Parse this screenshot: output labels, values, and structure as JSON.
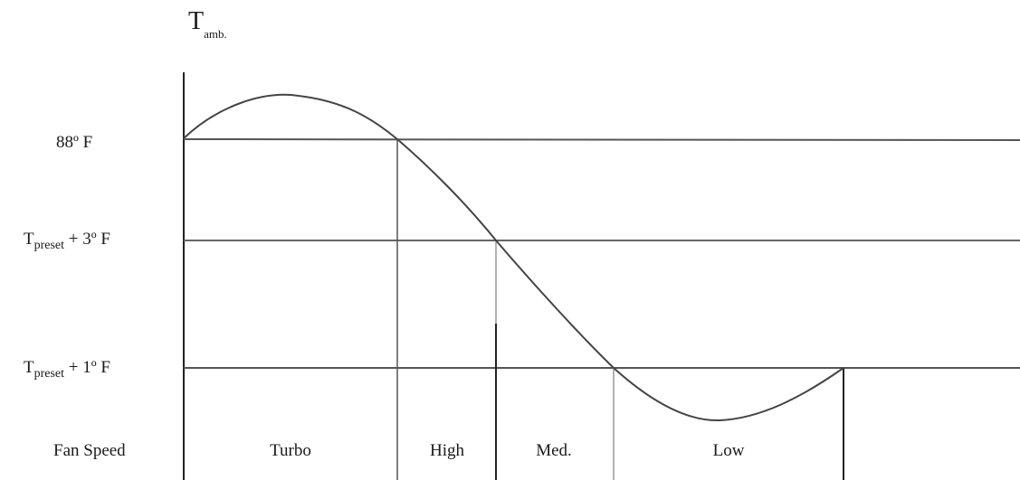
{
  "title": {
    "symbol": "T",
    "subscript": "amb."
  },
  "levels": {
    "l88": {
      "text": "88º F"
    },
    "lp3": {
      "symbol": "T",
      "subscript": "preset",
      "suffix": " + 3º F"
    },
    "lp1": {
      "symbol": "T",
      "subscript": "preset",
      "suffix": " + 1º F"
    }
  },
  "row_label": "Fan Speed",
  "zones": [
    "Turbo",
    "High",
    "Med.",
    "Low"
  ]
}
